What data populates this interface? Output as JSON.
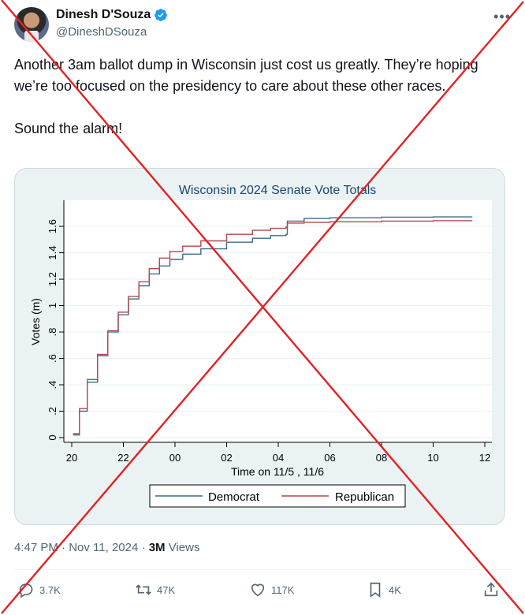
{
  "author": {
    "name": "Dinesh D'Souza",
    "handle": "@DineshDSouza"
  },
  "tweet": {
    "text": "Another 3am ballot dump in Wisconsin just cost us greatly. They’re hoping we’re too focused on the presidency to care about these other races.\n\nSound the alarm!"
  },
  "meta": {
    "time": "4:47 PM",
    "separator": "·",
    "date": "Nov 11, 2024",
    "views_count": "3M",
    "views_label": "Views"
  },
  "actions": {
    "replies": "3.7K",
    "reposts": "47K",
    "likes": "117K",
    "bookmarks": "4K"
  },
  "colors": {
    "democrat": "#3d6b8c",
    "republican": "#b04a4a",
    "overlay_x": "#e32222"
  },
  "chart_data": {
    "type": "line",
    "title": "Wisconsin 2024 Senate Vote Totals",
    "xlabel": "Time on 11/5 , 11/6",
    "ylabel": "Votes (m)",
    "x_ticks": [
      "20",
      "22",
      "00",
      "02",
      "04",
      "06",
      "08",
      "10",
      "12"
    ],
    "y_ticks": [
      "0",
      ".2",
      ".4",
      ".6",
      ".8",
      "1",
      "1.2",
      "1.4",
      "1.6"
    ],
    "xlim": [
      20,
      36
    ],
    "ylim": [
      0,
      1.75
    ],
    "grid": true,
    "legend_position": "bottom",
    "series": [
      {
        "name": "Democrat",
        "x": [
          20.05,
          20.3,
          20.6,
          21.0,
          21.4,
          21.8,
          22.2,
          22.6,
          23.0,
          23.4,
          23.8,
          24.3,
          25.0,
          26.0,
          27.0,
          27.7,
          28.3,
          28.35,
          29.0,
          30.0,
          32.0,
          34.0,
          35.5
        ],
        "y": [
          0.02,
          0.2,
          0.42,
          0.62,
          0.8,
          0.93,
          1.05,
          1.15,
          1.24,
          1.3,
          1.35,
          1.39,
          1.43,
          1.48,
          1.51,
          1.53,
          1.54,
          1.64,
          1.66,
          1.665,
          1.67,
          1.672,
          1.675
        ]
      },
      {
        "name": "Republican",
        "x": [
          20.05,
          20.3,
          20.6,
          21.0,
          21.4,
          21.8,
          22.2,
          22.6,
          23.0,
          23.4,
          23.8,
          24.3,
          25.0,
          26.0,
          27.0,
          27.7,
          28.3,
          28.35,
          29.0,
          30.0,
          32.0,
          34.0,
          35.5
        ],
        "y": [
          0.03,
          0.22,
          0.44,
          0.63,
          0.81,
          0.95,
          1.07,
          1.18,
          1.28,
          1.36,
          1.41,
          1.45,
          1.49,
          1.54,
          1.57,
          1.585,
          1.595,
          1.625,
          1.63,
          1.635,
          1.64,
          1.643,
          1.647
        ]
      }
    ]
  }
}
